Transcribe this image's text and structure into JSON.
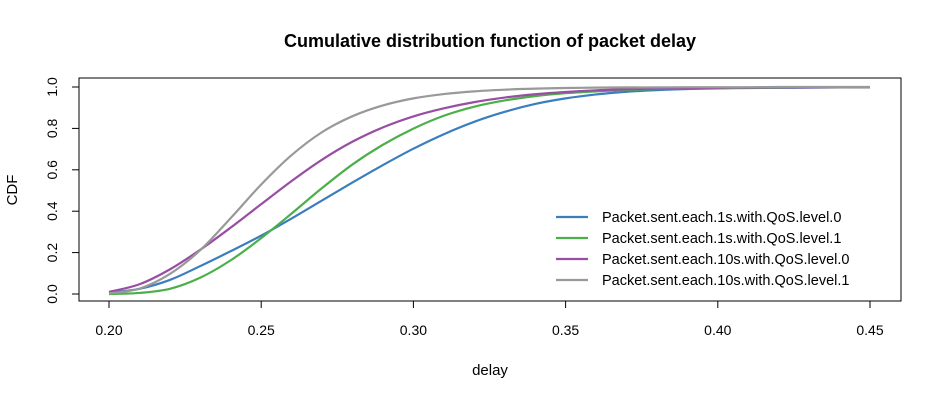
{
  "chart_data": {
    "type": "line",
    "title": "Cumulative distribution function of packet delay",
    "xlabel": "delay",
    "ylabel": "CDF",
    "xlim": [
      0.2,
      0.45
    ],
    "ylim": [
      0,
      1
    ],
    "grid": false,
    "legend_position": "bottom-right",
    "x_ticks": [
      "0.20",
      "0.25",
      "0.30",
      "0.35",
      "0.40",
      "0.45"
    ],
    "y_ticks": [
      "0.0",
      "0.2",
      "0.4",
      "0.6",
      "0.8",
      "1.0"
    ],
    "x": [
      0.2,
      0.21,
      0.22,
      0.23,
      0.24,
      0.25,
      0.26,
      0.27,
      0.28,
      0.29,
      0.3,
      0.31,
      0.32,
      0.33,
      0.34,
      0.35,
      0.36,
      0.37,
      0.38,
      0.39,
      0.4,
      0.41,
      0.42,
      0.43,
      0.44,
      0.45
    ],
    "series": [
      {
        "name": "Packet.sent.each.1s.with.QoS.level.0",
        "color": "#3a7ebf",
        "values": [
          0.006,
          0.025,
          0.068,
          0.135,
          0.207,
          0.282,
          0.365,
          0.452,
          0.539,
          0.623,
          0.702,
          0.772,
          0.832,
          0.88,
          0.918,
          0.945,
          0.964,
          0.977,
          0.985,
          0.99,
          0.993,
          0.995,
          0.996,
          0.997,
          0.998,
          0.998
        ]
      },
      {
        "name": "Packet.sent.each.1s.with.QoS.level.1",
        "color": "#4daf4a",
        "values": [
          0.0,
          0.005,
          0.025,
          0.079,
          0.163,
          0.27,
          0.389,
          0.512,
          0.626,
          0.721,
          0.799,
          0.861,
          0.905,
          0.935,
          0.956,
          0.97,
          0.979,
          0.986,
          0.99,
          0.993,
          0.995,
          0.996,
          0.997,
          0.998,
          0.998,
          0.999
        ]
      },
      {
        "name": "Packet.sent.each.10s.with.QoS.level.0",
        "color": "#984ea3",
        "values": [
          0.01,
          0.047,
          0.119,
          0.214,
          0.321,
          0.434,
          0.546,
          0.649,
          0.736,
          0.805,
          0.858,
          0.897,
          0.927,
          0.949,
          0.965,
          0.976,
          0.984,
          0.989,
          0.992,
          0.994,
          0.996,
          0.997,
          0.998,
          0.998,
          0.999,
          0.999
        ]
      },
      {
        "name": "Packet.sent.each.10s.with.QoS.level.1",
        "color": "#999999",
        "values": [
          0.003,
          0.026,
          0.097,
          0.212,
          0.367,
          0.529,
          0.671,
          0.782,
          0.859,
          0.911,
          0.945,
          0.966,
          0.979,
          0.987,
          0.992,
          0.995,
          0.997,
          0.998,
          0.998,
          0.999,
          0.999,
          0.999,
          1.0,
          1.0,
          1.0,
          1.0
        ]
      }
    ]
  }
}
